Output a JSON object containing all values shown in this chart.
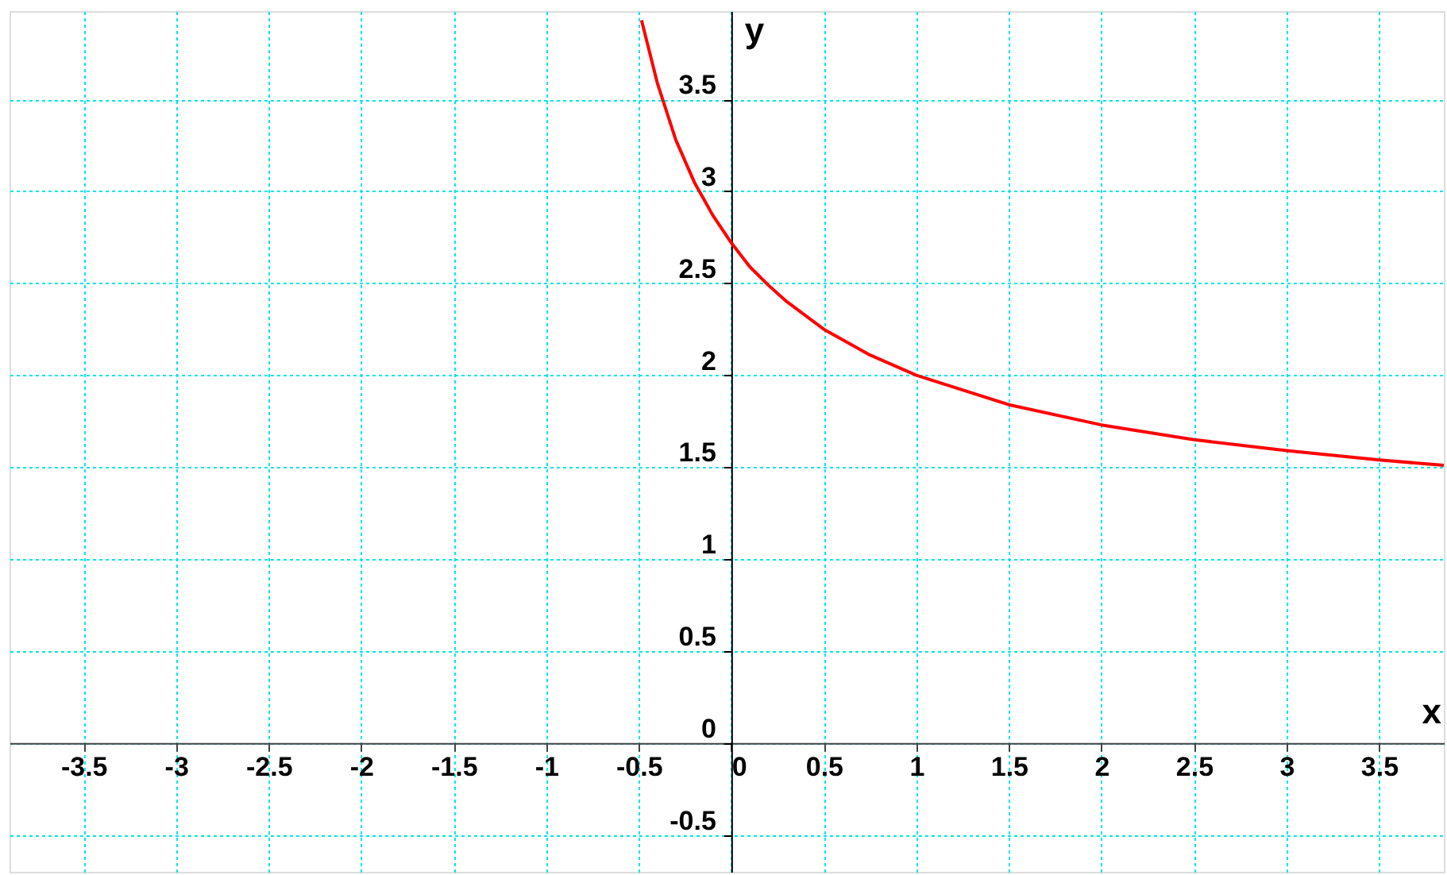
{
  "chart_data": {
    "type": "line",
    "xlabel": "x",
    "ylabel": "y",
    "series": [
      {
        "color": "#ff0000",
        "x": [
          -0.485,
          -0.4,
          -0.3,
          -0.2,
          -0.1,
          0,
          0.1,
          0.2,
          0.3,
          0.5,
          0.75,
          1,
          1.5,
          2,
          2.5,
          3,
          3.5,
          3.85
        ],
        "values": [
          3.93,
          3.59,
          3.28,
          3.05,
          2.87,
          2.72,
          2.59,
          2.49,
          2.4,
          2.25,
          2.11,
          2,
          1.84,
          1.73,
          1.65,
          1.59,
          1.54,
          1.51
        ]
      }
    ],
    "xlim": [
      -3.9,
      3.85
    ],
    "ylim": [
      -0.7,
      3.98
    ],
    "xticks": [
      -3.5,
      -3,
      -2.5,
      -2,
      -1.5,
      -1,
      -0.5,
      0,
      0.5,
      1,
      1.5,
      2,
      2.5,
      3,
      3.5
    ],
    "yticks": [
      -0.5,
      0,
      0.5,
      1,
      1.5,
      2,
      2.5,
      3,
      3.5
    ],
    "grid": true,
    "marker": "none",
    "line_style": "solid"
  }
}
